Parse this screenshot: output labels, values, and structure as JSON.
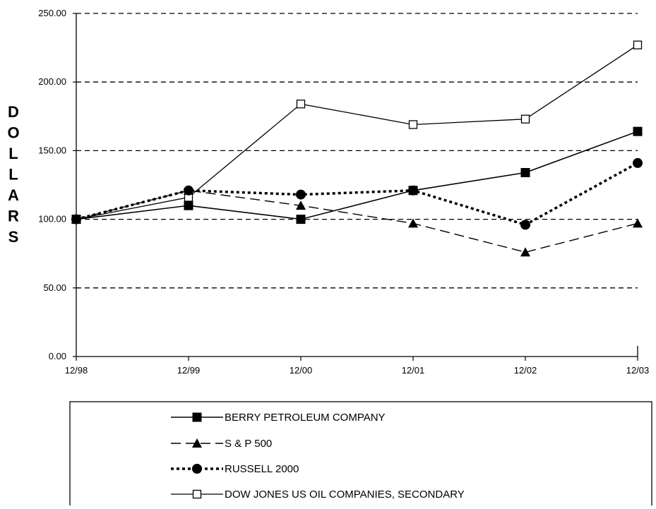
{
  "chart_data": {
    "type": "line",
    "title": "",
    "xlabel": "",
    "ylabel": "DOLLARS",
    "categories": [
      "12/98",
      "12/99",
      "12/00",
      "12/01",
      "12/02",
      "12/03"
    ],
    "ylim": [
      0,
      250
    ],
    "yticks": [
      "0.00",
      "50.00",
      "100.00",
      "150.00",
      "200.00",
      "250.00"
    ],
    "ytick_values": [
      0,
      50,
      100,
      150,
      200,
      250
    ],
    "grid": "horizontal dashed",
    "legend_position": "bottom",
    "series": [
      {
        "name": "BERRY PETROLEUM COMPANY",
        "values": [
          100,
          110,
          100,
          121,
          134,
          164
        ],
        "line": "solid",
        "marker": "filled-square"
      },
      {
        "name": "S & P 500",
        "values": [
          100,
          121,
          110,
          97,
          76,
          97
        ],
        "line": "long-dash",
        "marker": "filled-triangle"
      },
      {
        "name": "RUSSELL 2000",
        "values": [
          100,
          121,
          118,
          121,
          96,
          141
        ],
        "line": "dotted",
        "marker": "filled-circle"
      },
      {
        "name": "DOW JONES US OIL COMPANIES, SECONDARY",
        "values": [
          100,
          116,
          184,
          169,
          173,
          227
        ],
        "line": "solid-thin",
        "marker": "open-square"
      }
    ]
  }
}
